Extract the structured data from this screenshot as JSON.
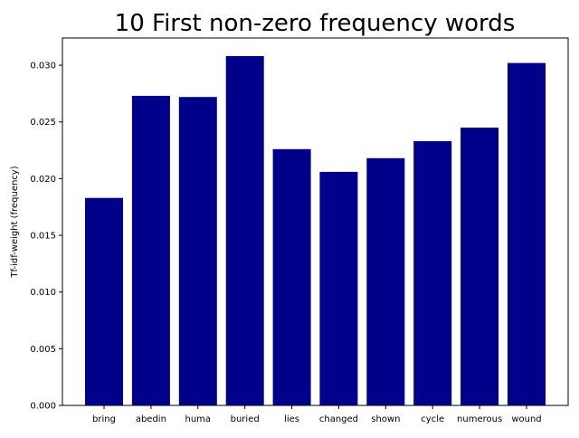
{
  "chart_data": {
    "type": "bar",
    "title": "10 First non-zero frequency words",
    "xlabel": "",
    "ylabel": "Tf-idf-weight (frequency)",
    "categories": [
      "bring",
      "abedin",
      "huma",
      "buried",
      "lies",
      "changed",
      "shown",
      "cycle",
      "numerous",
      "wound"
    ],
    "values": [
      0.0183,
      0.0273,
      0.0272,
      0.0308,
      0.0226,
      0.0206,
      0.0218,
      0.0233,
      0.0245,
      0.0302
    ],
    "ylim": [
      0,
      0.0324
    ],
    "yticks": [
      "0.000",
      "0.005",
      "0.010",
      "0.015",
      "0.020",
      "0.025",
      "0.030"
    ],
    "ytick_values": [
      0,
      0.005,
      0.01,
      0.015,
      0.02,
      0.025,
      0.03
    ],
    "bar_color": "#00008b",
    "grid": false,
    "legend": "none"
  }
}
